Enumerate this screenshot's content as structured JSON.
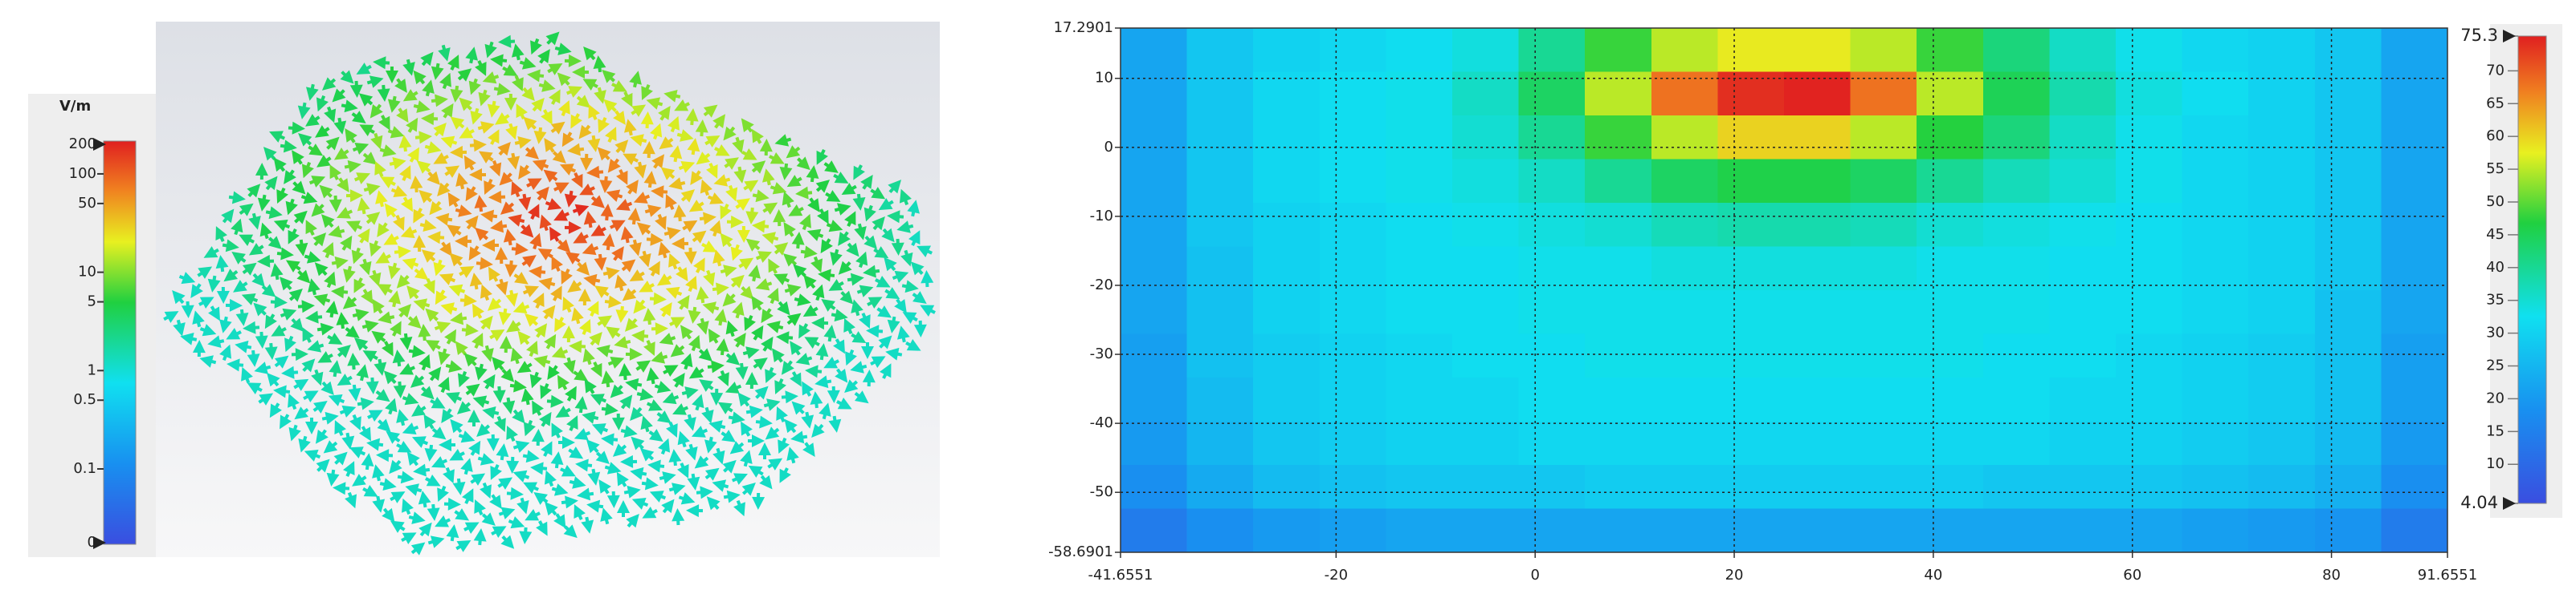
{
  "chart_data": [
    {
      "type": "vector-field",
      "colorbar_label": "V/m",
      "colorbar_ticks": [
        200,
        100,
        50,
        10,
        5,
        1,
        0.5,
        0.1,
        0
      ],
      "log": true
    },
    {
      "type": "heatmap",
      "xlim": [
        -41.6551,
        91.6551
      ],
      "xticks": [
        -41.6551,
        -20,
        0,
        20,
        40,
        60,
        80,
        91.6551
      ],
      "ylim": [
        -58.6901,
        17.2901
      ],
      "yticks": [
        17.2901,
        10,
        0,
        -10,
        -20,
        -30,
        -40,
        -50,
        -58.6901
      ],
      "grid": true,
      "clim": [
        4.04,
        75.3
      ],
      "colorbar_ticks": [
        75.3,
        70,
        65,
        60,
        55,
        50,
        45,
        40,
        35,
        30,
        25,
        20,
        15,
        10,
        4.04
      ],
      "z": [
        [
          22,
          28,
          30,
          31,
          32,
          34,
          40,
          48,
          55,
          58,
          58,
          55,
          48,
          42,
          36,
          33,
          31,
          30,
          28,
          22
        ],
        [
          22,
          28,
          31,
          32,
          33,
          36,
          44,
          55,
          68,
          74,
          75,
          68,
          55,
          45,
          38,
          34,
          32,
          30,
          28,
          22
        ],
        [
          22,
          28,
          31,
          32,
          33,
          35,
          40,
          48,
          55,
          60,
          60,
          55,
          47,
          42,
          36,
          33,
          31,
          30,
          28,
          22
        ],
        [
          22,
          28,
          31,
          32,
          33,
          34,
          36,
          40,
          44,
          46,
          46,
          44,
          40,
          37,
          35,
          33,
          31,
          30,
          28,
          22
        ],
        [
          22,
          28,
          30,
          31,
          32,
          33,
          34,
          35,
          37,
          38,
          38,
          37,
          35,
          34,
          33,
          32,
          31,
          30,
          28,
          22
        ],
        [
          22,
          27,
          30,
          31,
          32,
          32,
          33,
          33,
          34,
          34,
          34,
          34,
          33,
          33,
          32,
          32,
          31,
          30,
          28,
          22
        ],
        [
          22,
          27,
          30,
          31,
          32,
          32,
          33,
          33,
          33,
          33,
          33,
          33,
          33,
          33,
          32,
          32,
          31,
          30,
          27,
          22
        ],
        [
          21,
          27,
          29,
          30,
          31,
          32,
          32,
          33,
          33,
          33,
          33,
          33,
          33,
          32,
          32,
          31,
          30,
          29,
          27,
          21
        ],
        [
          21,
          26,
          29,
          30,
          31,
          31,
          32,
          32,
          32,
          32,
          32,
          32,
          32,
          32,
          31,
          31,
          30,
          29,
          27,
          21
        ],
        [
          20,
          25,
          28,
          29,
          30,
          30,
          31,
          31,
          31,
          31,
          31,
          31,
          31,
          31,
          30,
          30,
          29,
          28,
          26,
          20
        ],
        [
          18,
          23,
          26,
          27,
          28,
          28,
          28,
          29,
          29,
          29,
          29,
          29,
          29,
          28,
          28,
          28,
          27,
          26,
          24,
          18
        ],
        [
          14,
          18,
          20,
          21,
          22,
          22,
          22,
          22,
          22,
          22,
          22,
          22,
          22,
          22,
          22,
          22,
          21,
          20,
          19,
          14
        ]
      ]
    }
  ]
}
